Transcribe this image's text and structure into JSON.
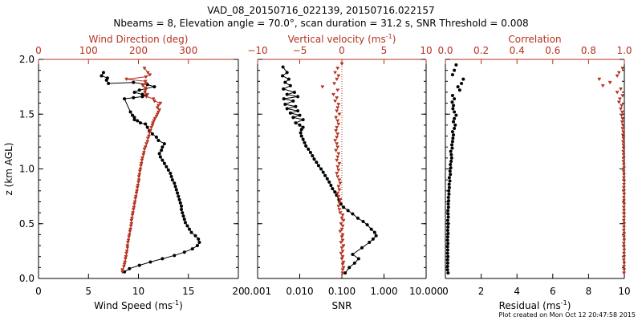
{
  "figure": {
    "title_line1": "VAD_08_20150716_022139, 20150716.022157",
    "title_line2": "Nbeams = 8, Elevation angle = 70.0°, scan duration = 31.2 s, SNR Threshold = 0.008",
    "footer": "Plot created on Mon Oct 12 20:47:58 2015",
    "colors": {
      "black_series": "#000000",
      "red_series": "#b5321f",
      "axes": "#000000"
    }
  },
  "chart_data": [
    {
      "type": "line",
      "panel": "wind",
      "ylabel": "z (km AGL)",
      "ylim": [
        0,
        2.0
      ],
      "yticks": [
        "0.0",
        "0.5",
        "1.0",
        "1.5",
        "2.0"
      ],
      "xlabel_bottom": "Wind Speed (ms",
      "xlabel_bottom_sup": "-1",
      "xlabel_bottom_tail": ")",
      "xlim_bottom": [
        0,
        20
      ],
      "xticks_bottom": [
        "0",
        "5",
        "10",
        "15",
        "20"
      ],
      "xlabel_top": "Wind Direction (deg)",
      "xlim_top": [
        0,
        400
      ],
      "xticks_top": [
        "0",
        "100",
        "200",
        "300"
      ],
      "series": [
        {
          "axis": "bottom",
          "color": "#000000",
          "connected": true,
          "x": [
            8.6,
            9.1,
            10.1,
            11.2,
            12.4,
            13.6,
            14.6,
            15.4,
            15.9,
            16.1,
            16.0,
            15.7,
            15.3,
            15.1,
            14.9,
            14.7,
            14.6,
            14.5,
            14.4,
            14.3,
            14.3,
            14.2,
            14.1,
            14.0,
            13.9,
            13.8,
            13.7,
            13.6,
            13.4,
            13.3,
            13.2,
            13.0,
            12.8,
            12.6,
            12.4,
            12.2,
            12.1,
            12.3,
            12.4,
            12.6,
            12.0,
            11.8,
            11.4,
            11.1,
            10.9,
            10.7,
            10.2,
            9.9,
            9.6,
            9.6,
            9.4,
            9.2,
            8.6,
            9.5,
            10.4,
            10.8,
            10.4,
            9.6,
            10.1,
            11.6,
            10.9,
            9.5,
            7.0,
            6.8,
            6.9,
            6.3,
            6.5
          ],
          "y": [
            0.06,
            0.09,
            0.12,
            0.15,
            0.18,
            0.21,
            0.24,
            0.27,
            0.3,
            0.33,
            0.36,
            0.39,
            0.42,
            0.45,
            0.48,
            0.51,
            0.54,
            0.57,
            0.6,
            0.63,
            0.66,
            0.69,
            0.72,
            0.75,
            0.78,
            0.81,
            0.84,
            0.87,
            0.9,
            0.93,
            0.96,
            0.99,
            1.02,
            1.05,
            1.08,
            1.11,
            1.14,
            1.17,
            1.2,
            1.23,
            1.26,
            1.29,
            1.32,
            1.35,
            1.38,
            1.41,
            1.42,
            1.44,
            1.45,
            1.47,
            1.49,
            1.52,
            1.64,
            1.65,
            1.66,
            1.67,
            1.68,
            1.7,
            1.72,
            1.75,
            1.77,
            1.79,
            1.78,
            1.81,
            1.83,
            1.85,
            1.88
          ]
        },
        {
          "axis": "top",
          "color": "#b5321f",
          "connected": true,
          "x": [
            168,
            168,
            171,
            172,
            173,
            174,
            175,
            176,
            177,
            178,
            178,
            179,
            180,
            181,
            182,
            183,
            184,
            185,
            186,
            186,
            187,
            188,
            189,
            190,
            191,
            192,
            193,
            194,
            195,
            196,
            197,
            198,
            199,
            200,
            201,
            201,
            202,
            203,
            204,
            205,
            206,
            207,
            208,
            210,
            211,
            212,
            214,
            216,
            218,
            219,
            221,
            222,
            224,
            226,
            228,
            229,
            231,
            233,
            236,
            238,
            240,
            242,
            238,
            240,
            244,
            232,
            230,
            216,
            218,
            213,
            214,
            214,
            209,
            215,
            214,
            176,
            215,
            223,
            219,
            212
          ],
          "y": [
            0.06,
            0.08,
            0.11,
            0.13,
            0.15,
            0.18,
            0.2,
            0.23,
            0.25,
            0.28,
            0.3,
            0.33,
            0.35,
            0.38,
            0.4,
            0.43,
            0.45,
            0.48,
            0.5,
            0.53,
            0.55,
            0.58,
            0.6,
            0.63,
            0.65,
            0.68,
            0.7,
            0.73,
            0.75,
            0.78,
            0.8,
            0.83,
            0.85,
            0.88,
            0.9,
            0.93,
            0.95,
            0.98,
            1.0,
            1.03,
            1.05,
            1.08,
            1.1,
            1.13,
            1.15,
            1.18,
            1.2,
            1.23,
            1.25,
            1.28,
            1.3,
            1.33,
            1.35,
            1.38,
            1.4,
            1.42,
            1.44,
            1.46,
            1.48,
            1.5,
            1.52,
            1.54,
            1.56,
            1.58,
            1.6,
            1.62,
            1.64,
            1.66,
            1.68,
            1.7,
            1.72,
            1.74,
            1.76,
            1.78,
            1.8,
            1.82,
            1.84,
            1.86,
            1.88,
            1.92
          ]
        }
      ]
    },
    {
      "type": "line",
      "panel": "vertical",
      "ylim": [
        0,
        2.0
      ],
      "xlabel_bottom": "SNR",
      "xlim_bottom": [
        0.001,
        10
      ],
      "xscale_bottom": "log",
      "xticks_bottom": [
        "0.001",
        "0.010",
        "0.100",
        "1.000",
        "10.000"
      ],
      "xlabel_top": "Vertical velocity (ms",
      "xlabel_top_sup": "-1",
      "xlabel_top_tail": ")",
      "xlim_top": [
        -10,
        10
      ],
      "xticks_top": [
        "−10",
        "−5",
        "0",
        "5",
        "10"
      ],
      "series": [
        {
          "axis": "bottom",
          "color": "#000000",
          "connected": true,
          "x": [
            0.12,
            0.15,
            0.2,
            0.25,
            0.18,
            0.3,
            0.45,
            0.55,
            0.65,
            0.6,
            0.5,
            0.4,
            0.32,
            0.24,
            0.18,
            0.14,
            0.11,
            0.095,
            0.085,
            0.075,
            0.068,
            0.06,
            0.055,
            0.05,
            0.045,
            0.04,
            0.036,
            0.032,
            0.028,
            0.025,
            0.022,
            0.02,
            0.018,
            0.016,
            0.014,
            0.013,
            0.012,
            0.011,
            0.0105,
            0.011,
            0.012,
            0.01,
            0.008,
            0.012,
            0.007,
            0.01,
            0.006,
            0.009,
            0.005,
            0.008,
            0.0045,
            0.007,
            0.0042,
            0.009,
            0.005,
            0.0075,
            0.0041,
            0.006,
            0.0045,
            0.0055,
            0.0039,
            0.005,
            0.004
          ],
          "y": [
            0.05,
            0.1,
            0.14,
            0.18,
            0.22,
            0.28,
            0.33,
            0.36,
            0.39,
            0.42,
            0.45,
            0.49,
            0.52,
            0.55,
            0.59,
            0.62,
            0.65,
            0.68,
            0.72,
            0.76,
            0.79,
            0.82,
            0.85,
            0.88,
            0.91,
            0.94,
            0.97,
            1.0,
            1.03,
            1.06,
            1.09,
            1.12,
            1.15,
            1.18,
            1.21,
            1.24,
            1.27,
            1.3,
            1.33,
            1.36,
            1.38,
            1.4,
            1.42,
            1.45,
            1.47,
            1.49,
            1.51,
            1.53,
            1.55,
            1.57,
            1.59,
            1.62,
            1.64,
            1.66,
            1.68,
            1.7,
            1.73,
            1.76,
            1.79,
            1.82,
            1.85,
            1.88,
            1.93
          ]
        },
        {
          "axis": "top",
          "color": "#b5321f",
          "connected": false,
          "x": [
            0.1,
            0.1,
            0.2,
            0.1,
            0.2,
            0.0,
            0.1,
            -0.1,
            0.1,
            0.0,
            0.2,
            -0.1,
            0.1,
            0.0,
            0.1,
            -0.2,
            0.0,
            0.1,
            -0.1,
            0.2,
            0.0,
            0.1,
            -0.2,
            -0.3,
            -0.4,
            -0.3,
            -0.2,
            -0.4,
            -0.5,
            -0.3,
            -0.4,
            -0.2,
            -0.3,
            -0.5,
            -0.6,
            -0.4,
            -0.5,
            -0.3,
            -0.6,
            -0.5,
            -0.4,
            -0.7,
            -0.5,
            -0.6,
            -0.8,
            -0.6,
            -0.5,
            -0.7,
            -0.6,
            -0.4,
            -0.5,
            -0.7,
            -0.3,
            -0.6,
            -0.5,
            -0.4,
            -0.8,
            -0.6,
            -1.0,
            -0.5,
            -2.3,
            -0.9,
            -0.6,
            -0.4,
            -0.8,
            -0.5,
            0.0
          ],
          "y": [
            0.05,
            0.08,
            0.1,
            0.13,
            0.15,
            0.18,
            0.2,
            0.23,
            0.25,
            0.28,
            0.3,
            0.33,
            0.35,
            0.38,
            0.4,
            0.43,
            0.45,
            0.48,
            0.5,
            0.53,
            0.55,
            0.58,
            0.6,
            0.63,
            0.66,
            0.69,
            0.72,
            0.75,
            0.78,
            0.81,
            0.84,
            0.87,
            0.9,
            0.93,
            0.96,
            0.99,
            1.02,
            1.05,
            1.08,
            1.11,
            1.14,
            1.17,
            1.2,
            1.23,
            1.26,
            1.29,
            1.32,
            1.35,
            1.38,
            1.41,
            1.44,
            1.47,
            1.5,
            1.53,
            1.56,
            1.59,
            1.62,
            1.65,
            1.68,
            1.72,
            1.75,
            1.78,
            1.82,
            1.85,
            1.88,
            1.92,
            1.96
          ]
        }
      ]
    },
    {
      "type": "scatter",
      "panel": "correlation",
      "ylim": [
        0,
        2.0
      ],
      "xlabel_bottom": "Residual (ms",
      "xlabel_bottom_sup": "-1",
      "xlabel_bottom_tail": ")",
      "xlim_bottom": [
        0,
        10
      ],
      "xticks_bottom": [
        "0",
        "2",
        "4",
        "6",
        "8",
        "10"
      ],
      "xlabel_top": "Correlation",
      "xlim_top": [
        0,
        1.0
      ],
      "xticks_top": [
        "0.0",
        "0.2",
        "0.4",
        "0.6",
        "0.8",
        "1.0"
      ],
      "series": [
        {
          "axis": "bottom",
          "color": "#000000",
          "connected": false,
          "x": [
            0.15,
            0.12,
            0.12,
            0.13,
            0.12,
            0.14,
            0.12,
            0.13,
            0.12,
            0.14,
            0.12,
            0.13,
            0.15,
            0.13,
            0.14,
            0.15,
            0.13,
            0.16,
            0.15,
            0.14,
            0.17,
            0.16,
            0.18,
            0.17,
            0.2,
            0.19,
            0.22,
            0.21,
            0.25,
            0.22,
            0.28,
            0.26,
            0.3,
            0.28,
            0.32,
            0.35,
            0.33,
            0.3,
            0.38,
            0.36,
            0.4,
            0.42,
            0.45,
            0.4,
            0.5,
            0.55,
            0.45,
            0.5,
            0.6,
            0.5,
            0.42,
            0.45,
            0.38,
            0.5,
            0.4,
            0.8,
            0.7,
            0.9,
            1.0,
            0.4,
            0.5,
            0.6
          ],
          "y": [
            0.05,
            0.08,
            0.11,
            0.14,
            0.17,
            0.2,
            0.23,
            0.26,
            0.29,
            0.32,
            0.35,
            0.38,
            0.41,
            0.44,
            0.47,
            0.5,
            0.53,
            0.56,
            0.59,
            0.62,
            0.65,
            0.68,
            0.71,
            0.74,
            0.77,
            0.8,
            0.83,
            0.86,
            0.89,
            0.92,
            0.95,
            0.98,
            1.01,
            1.04,
            1.07,
            1.1,
            1.13,
            1.16,
            1.19,
            1.22,
            1.25,
            1.28,
            1.31,
            1.34,
            1.37,
            1.4,
            1.43,
            1.46,
            1.49,
            1.52,
            1.55,
            1.58,
            1.61,
            1.64,
            1.67,
            1.72,
            1.75,
            1.78,
            1.82,
            1.86,
            1.9,
            1.95
          ]
        },
        {
          "axis": "top",
          "color": "#b5321f",
          "connected": false,
          "x": [
            0.998,
            0.999,
            0.998,
            0.999,
            0.997,
            0.999,
            0.998,
            0.999,
            0.998,
            0.997,
            0.999,
            0.998,
            0.999,
            0.997,
            0.998,
            0.999,
            0.997,
            0.998,
            0.999,
            0.998,
            0.997,
            0.999,
            0.998,
            0.997,
            0.999,
            0.998,
            0.997,
            0.998,
            0.999,
            0.997,
            0.998,
            0.996,
            0.998,
            0.997,
            0.995,
            0.997,
            0.996,
            0.994,
            0.996,
            0.995,
            0.993,
            0.995,
            0.992,
            0.994,
            0.99,
            0.992,
            0.988,
            0.99,
            0.985,
            0.988,
            0.98,
            0.985,
            0.97,
            0.975,
            0.99,
            0.96,
            0.98,
            0.88,
            0.92,
            0.86,
            0.96,
            0.97,
            0.99
          ],
          "y": [
            0.05,
            0.08,
            0.11,
            0.14,
            0.17,
            0.2,
            0.23,
            0.26,
            0.29,
            0.32,
            0.35,
            0.38,
            0.41,
            0.44,
            0.47,
            0.5,
            0.53,
            0.56,
            0.59,
            0.62,
            0.65,
            0.68,
            0.71,
            0.74,
            0.77,
            0.8,
            0.83,
            0.86,
            0.89,
            0.92,
            0.95,
            0.98,
            1.01,
            1.04,
            1.07,
            1.1,
            1.13,
            1.16,
            1.19,
            1.22,
            1.25,
            1.28,
            1.31,
            1.34,
            1.37,
            1.4,
            1.43,
            1.46,
            1.49,
            1.52,
            1.55,
            1.58,
            1.61,
            1.64,
            1.67,
            1.7,
            1.73,
            1.76,
            1.79,
            1.82,
            1.85,
            1.88,
            1.92
          ]
        }
      ]
    }
  ]
}
